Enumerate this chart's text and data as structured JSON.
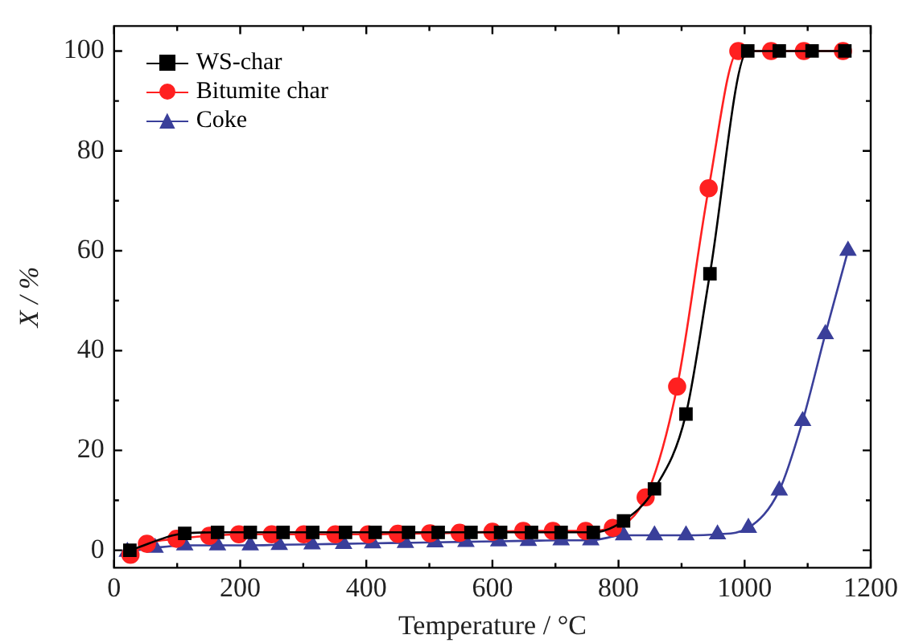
{
  "chart_data": {
    "type": "line",
    "xlabel": "Temperature / °C",
    "ylabel": "X / %",
    "xlim": [
      0,
      1200
    ],
    "xticks": [
      0,
      {
        "value": 100,
        "label": null
      },
      200,
      {
        "value": 300,
        "label": null
      },
      400,
      {
        "value": 500,
        "label": null
      },
      600,
      {
        "value": 700,
        "label": null
      },
      800,
      {
        "value": 900,
        "label": null
      },
      1000,
      {
        "value": 1100,
        "label": null
      },
      1200
    ],
    "ylim": [
      -3.5,
      105
    ],
    "yticks": [
      0,
      {
        "value": 10,
        "label": null
      },
      20,
      {
        "value": 30,
        "label": null
      },
      40,
      {
        "value": 50,
        "label": null
      },
      60,
      {
        "value": 70,
        "label": null
      },
      80,
      {
        "value": 90,
        "label": null
      },
      100
    ],
    "grid": false,
    "legend": "top left",
    "series": [
      {
        "name": "WS-char",
        "color": "#000000",
        "marker": "square",
        "x": [
          25,
          112,
          164,
          216,
          268,
          315,
          367,
          414,
          467,
          514,
          566,
          613,
          662,
          709,
          760,
          808,
          857,
          907,
          945,
          1005,
          1055,
          1107,
          1159
        ],
        "values": [
          0,
          3.4,
          3.6,
          3.6,
          3.6,
          3.6,
          3.6,
          3.6,
          3.6,
          3.6,
          3.6,
          3.6,
          3.6,
          3.6,
          3.6,
          5.9,
          12.3,
          27.3,
          55.4,
          100,
          100,
          100,
          100
        ]
      },
      {
        "name": "Bitumite char",
        "color": "#ff2020",
        "marker": "circle",
        "x": [
          26,
          52,
          99,
          151,
          198,
          250,
          301,
          351,
          403,
          450,
          501,
          548,
          600,
          649,
          696,
          748,
          791,
          843,
          893,
          943,
          990,
          1042,
          1094,
          1156
        ],
        "values": [
          -0.9,
          1.3,
          2.3,
          2.9,
          3.2,
          3.2,
          3.2,
          3.2,
          3.2,
          3.3,
          3.4,
          3.5,
          3.7,
          3.9,
          3.9,
          3.9,
          4.5,
          10.6,
          32.8,
          72.5,
          100,
          100,
          100,
          100
        ]
      },
      {
        "name": "Coke",
        "color": "#3a3f9a",
        "marker": "triangle",
        "x": [
          21,
          65,
          112,
          164,
          216,
          262,
          314,
          364,
          410,
          462,
          509,
          558,
          610,
          657,
          709,
          756,
          808,
          857,
          907,
          957,
          1006,
          1055,
          1092,
          1128,
          1164
        ],
        "values": [
          -0.3,
          0.5,
          1,
          1,
          1,
          1.1,
          1.2,
          1.3,
          1.4,
          1.5,
          1.6,
          1.7,
          1.8,
          1.9,
          2,
          2,
          3,
          3,
          3,
          3.2,
          4.5,
          12,
          25.9,
          43.3,
          60
        ]
      }
    ]
  }
}
